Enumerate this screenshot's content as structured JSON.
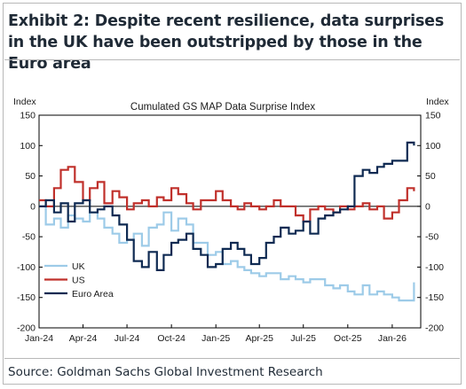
{
  "exhibit_title": "Exhibit 2: Despite recent resilience, data surprises in the UK have been outstripped by those in the Euro area",
  "source": "Source: Goldman Sachs Global Investment Research",
  "chart_data": {
    "type": "line",
    "title": "Cumulated GS MAP Data Surprise Index",
    "ylabel_left": "Index",
    "ylabel_right": "Index",
    "ylim": [
      -200,
      150
    ],
    "yticks": [
      -200,
      -150,
      -100,
      -50,
      0,
      50,
      100,
      150
    ],
    "xlim": [
      "2024-01-01",
      "2026-03-01"
    ],
    "xticks": [
      "2024-01-01",
      "2024-04-01",
      "2024-07-01",
      "2024-10-01",
      "2025-01-01",
      "2025-04-01",
      "2025-07-01",
      "2025-10-01",
      "2026-01-01"
    ],
    "xtick_labels": [
      "Jan-24",
      "Apr-24",
      "Jul-24",
      "Oct-24",
      "Jan-25",
      "Apr-25",
      "Jul-25",
      "Oct-25",
      "Jan-26"
    ],
    "zero_line": true,
    "grid": false,
    "legend_position": "bottom-left",
    "series": [
      {
        "name": "UK",
        "color": "#9dcbe8",
        "x": [
          "2024-01-01",
          "2024-01-15",
          "2024-02-01",
          "2024-02-15",
          "2024-03-01",
          "2024-03-15",
          "2024-04-01",
          "2024-04-15",
          "2024-05-01",
          "2024-05-15",
          "2024-06-01",
          "2024-06-15",
          "2024-07-01",
          "2024-07-15",
          "2024-08-01",
          "2024-08-15",
          "2024-09-01",
          "2024-09-15",
          "2024-10-01",
          "2024-10-15",
          "2024-11-01",
          "2024-11-15",
          "2024-12-01",
          "2024-12-15",
          "2025-01-01",
          "2025-01-15",
          "2025-02-01",
          "2025-02-15",
          "2025-03-01",
          "2025-03-15",
          "2025-04-01",
          "2025-04-15",
          "2025-05-01",
          "2025-05-15",
          "2025-06-01",
          "2025-06-15",
          "2025-07-01",
          "2025-07-15",
          "2025-08-01",
          "2025-08-15",
          "2025-09-01",
          "2025-09-15",
          "2025-10-01",
          "2025-10-15",
          "2025-11-01",
          "2025-11-15",
          "2025-12-01",
          "2025-12-15",
          "2026-01-01",
          "2026-01-15",
          "2026-02-01",
          "2026-02-15"
        ],
        "values": [
          0,
          -30,
          -20,
          -35,
          -15,
          -20,
          -25,
          -10,
          -20,
          -35,
          -45,
          -60,
          -55,
          -45,
          -65,
          -35,
          -30,
          -10,
          -40,
          -20,
          -30,
          -60,
          -60,
          -80,
          -75,
          -95,
          -90,
          -100,
          -105,
          -110,
          -115,
          -110,
          -110,
          -120,
          -115,
          -120,
          -125,
          -120,
          -120,
          -130,
          -135,
          -130,
          -140,
          -145,
          -130,
          -145,
          -140,
          -145,
          -150,
          -155,
          -155,
          -125
        ]
      },
      {
        "name": "US",
        "color": "#c0302b",
        "x": [
          "2024-01-01",
          "2024-01-15",
          "2024-02-01",
          "2024-02-15",
          "2024-03-01",
          "2024-03-15",
          "2024-04-01",
          "2024-04-15",
          "2024-05-01",
          "2024-05-15",
          "2024-06-01",
          "2024-06-15",
          "2024-07-01",
          "2024-07-15",
          "2024-08-01",
          "2024-08-15",
          "2024-09-01",
          "2024-09-15",
          "2024-10-01",
          "2024-10-15",
          "2024-11-01",
          "2024-11-15",
          "2024-12-01",
          "2024-12-15",
          "2025-01-01",
          "2025-01-15",
          "2025-02-01",
          "2025-02-15",
          "2025-03-01",
          "2025-03-15",
          "2025-04-01",
          "2025-04-15",
          "2025-05-01",
          "2025-05-15",
          "2025-06-01",
          "2025-06-15",
          "2025-07-01",
          "2025-07-15",
          "2025-08-01",
          "2025-08-15",
          "2025-09-01",
          "2025-09-15",
          "2025-10-01",
          "2025-10-15",
          "2025-11-01",
          "2025-11-15",
          "2025-12-01",
          "2025-12-15",
          "2026-01-01",
          "2026-01-15",
          "2026-02-01",
          "2026-02-15"
        ],
        "values": [
          10,
          0,
          30,
          60,
          65,
          40,
          10,
          30,
          40,
          5,
          25,
          15,
          -5,
          5,
          10,
          0,
          15,
          10,
          30,
          20,
          5,
          -5,
          10,
          10,
          25,
          10,
          0,
          -5,
          5,
          0,
          -5,
          0,
          10,
          0,
          0,
          -15,
          -25,
          -5,
          0,
          -5,
          -10,
          0,
          -5,
          0,
          5,
          -5,
          0,
          -20,
          -10,
          10,
          30,
          25
        ]
      },
      {
        "name": "Euro Area",
        "color": "#0f2a52",
        "x": [
          "2024-01-01",
          "2024-01-15",
          "2024-02-01",
          "2024-02-15",
          "2024-03-01",
          "2024-03-15",
          "2024-04-01",
          "2024-04-15",
          "2024-05-01",
          "2024-05-15",
          "2024-06-01",
          "2024-06-15",
          "2024-07-01",
          "2024-07-15",
          "2024-08-01",
          "2024-08-15",
          "2024-09-01",
          "2024-09-15",
          "2024-10-01",
          "2024-10-15",
          "2024-11-01",
          "2024-11-15",
          "2024-12-01",
          "2024-12-15",
          "2025-01-01",
          "2025-01-15",
          "2025-02-01",
          "2025-02-15",
          "2025-03-01",
          "2025-03-15",
          "2025-04-01",
          "2025-04-15",
          "2025-05-01",
          "2025-05-15",
          "2025-06-01",
          "2025-06-15",
          "2025-07-01",
          "2025-07-15",
          "2025-08-01",
          "2025-08-15",
          "2025-09-01",
          "2025-09-15",
          "2025-10-01",
          "2025-10-15",
          "2025-11-01",
          "2025-11-15",
          "2025-12-01",
          "2025-12-15",
          "2026-01-01",
          "2026-01-15",
          "2026-02-01",
          "2026-02-15"
        ],
        "values": [
          0,
          10,
          -10,
          5,
          -25,
          5,
          10,
          -10,
          -5,
          0,
          -15,
          -30,
          -55,
          -90,
          -100,
          -75,
          -105,
          -80,
          -60,
          -55,
          -45,
          -70,
          -80,
          -100,
          -95,
          -70,
          -60,
          -70,
          -80,
          -95,
          -85,
          -60,
          -50,
          -35,
          -45,
          -40,
          -25,
          -45,
          -20,
          -15,
          -10,
          -5,
          0,
          50,
          60,
          55,
          65,
          70,
          75,
          75,
          105,
          100
        ]
      }
    ]
  }
}
